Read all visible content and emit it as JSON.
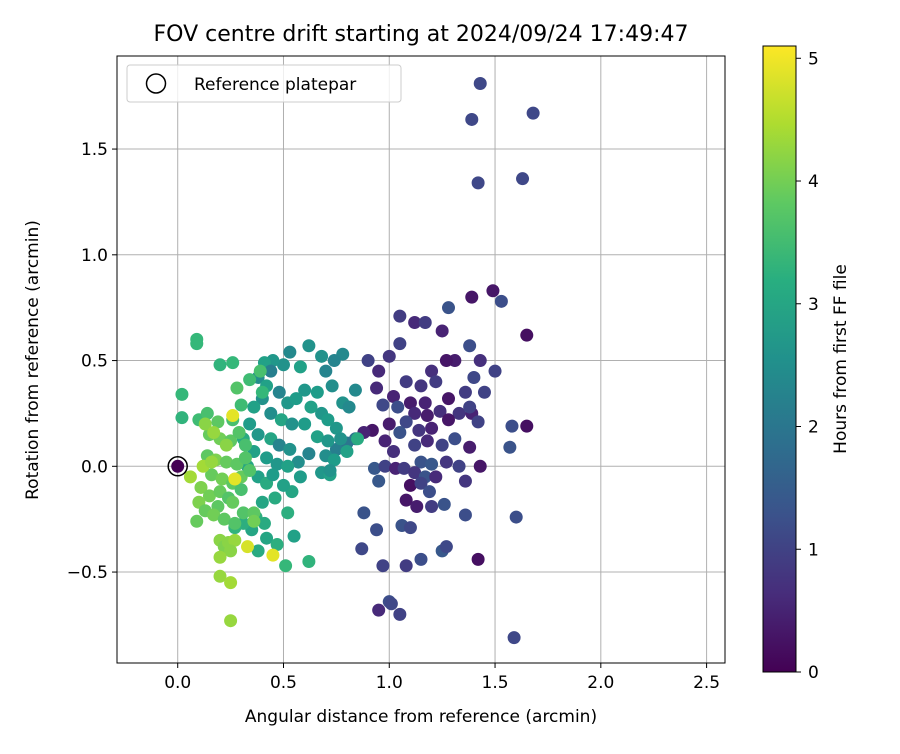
{
  "chart_data": {
    "type": "scatter",
    "title": "FOV centre drift starting at 2024/09/24 17:49:47",
    "xlabel": "Angular distance from reference (arcmin)",
    "ylabel": "Rotation from reference (arcmin)",
    "xlim": [
      -0.287,
      2.587
    ],
    "ylim": [
      -0.93,
      1.94
    ],
    "xticks": [
      0.0,
      0.5,
      1.0,
      1.5,
      2.0,
      2.5
    ],
    "xtick_labels": [
      "0.0",
      "0.5",
      "1.0",
      "1.5",
      "2.0",
      "2.5"
    ],
    "yticks": [
      -0.5,
      0.0,
      0.5,
      1.0,
      1.5
    ],
    "ytick_labels": [
      "−0.5",
      "0.0",
      "0.5",
      "1.0",
      "1.5"
    ],
    "grid": true,
    "legend": {
      "placement": "upper-left",
      "entries": [
        "Reference platepar"
      ]
    },
    "reference_point": {
      "x": 0.0,
      "y": 0.0
    },
    "colorbar": {
      "label": "Hours from first FF file",
      "range": [
        0,
        5.1
      ],
      "ticks": [
        0,
        1,
        2,
        3,
        4,
        5
      ],
      "tick_labels": [
        "0",
        "1",
        "2",
        "3",
        "4",
        "5"
      ],
      "colormap": "viridis"
    },
    "points": [
      [
        1.43,
        1.81,
        1.1
      ],
      [
        1.68,
        1.67,
        1.1
      ],
      [
        1.39,
        1.64,
        1.1
      ],
      [
        1.63,
        1.36,
        1.1
      ],
      [
        1.42,
        1.34,
        1.1
      ],
      [
        1.49,
        0.83,
        0.3
      ],
      [
        1.39,
        0.8,
        0.3
      ],
      [
        1.53,
        0.78,
        1.2
      ],
      [
        1.28,
        0.75,
        1.3
      ],
      [
        1.65,
        0.62,
        0.2
      ],
      [
        1.05,
        0.71,
        0.9
      ],
      [
        1.12,
        0.68,
        0.6
      ],
      [
        1.17,
        0.68,
        0.9
      ],
      [
        1.25,
        0.64,
        0.5
      ],
      [
        1.05,
        0.58,
        1.0
      ],
      [
        1.38,
        0.57,
        1.2
      ],
      [
        1.43,
        0.5,
        0.7
      ],
      [
        1.31,
        0.5,
        0.4
      ],
      [
        1.27,
        0.5,
        0.3
      ],
      [
        1.5,
        0.45,
        1.0
      ],
      [
        1.0,
        0.52,
        0.8
      ],
      [
        0.9,
        0.5,
        1.0
      ],
      [
        0.95,
        0.45,
        0.6
      ],
      [
        1.2,
        0.45,
        0.7
      ],
      [
        1.08,
        0.4,
        0.9
      ],
      [
        1.15,
        0.38,
        0.8
      ],
      [
        1.22,
        0.4,
        0.9
      ],
      [
        1.4,
        0.42,
        1.1
      ],
      [
        1.36,
        0.35,
        0.9
      ],
      [
        1.45,
        0.35,
        1.0
      ],
      [
        0.94,
        0.37,
        0.6
      ],
      [
        1.02,
        0.33,
        0.5
      ],
      [
        1.1,
        0.3,
        0.4
      ],
      [
        1.17,
        0.3,
        0.5
      ],
      [
        1.28,
        0.32,
        0.3
      ],
      [
        1.33,
        0.25,
        0.8
      ],
      [
        1.39,
        0.25,
        0.5
      ],
      [
        1.42,
        0.21,
        1.0
      ],
      [
        1.38,
        0.28,
        1.0
      ],
      [
        0.97,
        0.29,
        1.1
      ],
      [
        1.04,
        0.28,
        1.2
      ],
      [
        1.12,
        0.25,
        0.6
      ],
      [
        1.18,
        0.24,
        0.4
      ],
      [
        1.24,
        0.26,
        0.7
      ],
      [
        1.58,
        0.19,
        1.2
      ],
      [
        1.65,
        0.19,
        0.2
      ],
      [
        1.28,
        0.22,
        0.3
      ],
      [
        1.2,
        0.18,
        0.5
      ],
      [
        1.14,
        0.17,
        0.8
      ],
      [
        1.08,
        0.21,
        1.1
      ],
      [
        1.0,
        0.2,
        0.4
      ],
      [
        0.92,
        0.17,
        0.3
      ],
      [
        0.98,
        0.12,
        0.5
      ],
      [
        1.05,
        0.16,
        1.3
      ],
      [
        1.12,
        0.1,
        1.0
      ],
      [
        1.18,
        0.12,
        0.6
      ],
      [
        1.25,
        0.1,
        1.0
      ],
      [
        1.31,
        0.13,
        1.2
      ],
      [
        1.38,
        0.09,
        0.4
      ],
      [
        1.57,
        0.09,
        1.3
      ],
      [
        0.88,
        0.16,
        0.5
      ],
      [
        0.84,
        0.13,
        1.9
      ],
      [
        0.8,
        0.11,
        2.0
      ],
      [
        0.75,
        0.08,
        2.2
      ],
      [
        1.02,
        0.07,
        0.7
      ],
      [
        1.15,
        0.02,
        1.3
      ],
      [
        1.2,
        0.01,
        1.4
      ],
      [
        1.27,
        0.02,
        0.8
      ],
      [
        1.33,
        0.0,
        1.0
      ],
      [
        1.43,
        0.0,
        0.3
      ],
      [
        0.93,
        -0.01,
        1.4
      ],
      [
        0.98,
        0.0,
        1.0
      ],
      [
        1.03,
        -0.01,
        0.5
      ],
      [
        1.07,
        -0.01,
        0.9
      ],
      [
        1.12,
        -0.03,
        0.8
      ],
      [
        1.17,
        -0.05,
        1.3
      ],
      [
        1.22,
        -0.05,
        0.6
      ],
      [
        0.95,
        -0.07,
        1.4
      ],
      [
        1.1,
        -0.09,
        0.2
      ],
      [
        1.15,
        -0.08,
        1.0
      ],
      [
        1.19,
        -0.12,
        1.2
      ],
      [
        1.36,
        -0.07,
        0.8
      ],
      [
        1.08,
        -0.16,
        0.3
      ],
      [
        1.13,
        -0.19,
        0.4
      ],
      [
        1.2,
        -0.19,
        0.9
      ],
      [
        1.26,
        -0.18,
        1.3
      ],
      [
        1.36,
        -0.23,
        1.2
      ],
      [
        0.88,
        -0.22,
        1.3
      ],
      [
        0.94,
        -0.3,
        1.2
      ],
      [
        1.06,
        -0.28,
        1.3
      ],
      [
        1.1,
        -0.29,
        1.1
      ],
      [
        1.25,
        -0.4,
        1.4
      ],
      [
        1.27,
        -0.38,
        1.1
      ],
      [
        1.42,
        -0.44,
        0.2
      ],
      [
        1.6,
        -0.24,
        1.2
      ],
      [
        0.87,
        -0.39,
        1.1
      ],
      [
        0.97,
        -0.47,
        1.0
      ],
      [
        1.08,
        -0.47,
        0.9
      ],
      [
        1.15,
        -0.44,
        1.2
      ],
      [
        1.0,
        -0.64,
        1.2
      ],
      [
        1.01,
        -0.65,
        1.1
      ],
      [
        1.05,
        -0.7,
        1.0
      ],
      [
        1.59,
        -0.81,
        1.1
      ],
      [
        0.95,
        -0.68,
        0.6
      ],
      [
        0.78,
        0.53,
        2.4
      ],
      [
        0.74,
        0.5,
        2.3
      ],
      [
        0.62,
        0.57,
        2.6
      ],
      [
        0.58,
        0.47,
        2.9
      ],
      [
        0.6,
        0.36,
        2.7
      ],
      [
        0.68,
        0.52,
        2.6
      ],
      [
        0.7,
        0.45,
        2.3
      ],
      [
        0.73,
        0.38,
        2.5
      ],
      [
        0.66,
        0.35,
        2.8
      ],
      [
        0.78,
        0.3,
        2.6
      ],
      [
        0.84,
        0.36,
        2.4
      ],
      [
        0.81,
        0.28,
        2.4
      ],
      [
        0.68,
        0.25,
        2.7
      ],
      [
        0.71,
        0.22,
        2.8
      ],
      [
        0.75,
        0.18,
        2.7
      ],
      [
        0.63,
        0.28,
        2.9
      ],
      [
        0.6,
        0.2,
        2.8
      ],
      [
        0.66,
        0.14,
        2.9
      ],
      [
        0.71,
        0.12,
        2.7
      ],
      [
        0.77,
        0.13,
        2.6
      ],
      [
        0.7,
        0.05,
        2.5
      ],
      [
        0.74,
        0.03,
        2.8
      ],
      [
        0.68,
        -0.03,
        2.7
      ],
      [
        0.72,
        -0.04,
        2.9
      ],
      [
        0.57,
        0.02,
        2.5
      ],
      [
        0.62,
        0.06,
        2.3
      ],
      [
        0.58,
        -0.05,
        2.8
      ],
      [
        0.54,
        -0.12,
        3.0
      ],
      [
        0.5,
        -0.09,
        2.9
      ],
      [
        0.46,
        -0.15,
        3.1
      ],
      [
        0.53,
        0.54,
        2.4
      ],
      [
        0.5,
        0.48,
        2.6
      ],
      [
        0.45,
        0.5,
        2.7
      ],
      [
        0.41,
        0.49,
        2.9
      ],
      [
        0.44,
        0.45,
        2.2
      ],
      [
        0.38,
        0.42,
        2.5
      ],
      [
        0.42,
        0.38,
        2.9
      ],
      [
        0.48,
        0.35,
        2.3
      ],
      [
        0.52,
        0.3,
        2.7
      ],
      [
        0.56,
        0.32,
        2.8
      ],
      [
        0.4,
        0.32,
        2.6
      ],
      [
        0.36,
        0.28,
        2.9
      ],
      [
        0.44,
        0.25,
        2.5
      ],
      [
        0.49,
        0.22,
        3.0
      ],
      [
        0.54,
        0.2,
        2.6
      ],
      [
        0.34,
        0.2,
        2.8
      ],
      [
        0.38,
        0.15,
        2.7
      ],
      [
        0.44,
        0.13,
        3.0
      ],
      [
        0.48,
        0.1,
        2.3
      ],
      [
        0.53,
        0.08,
        2.6
      ],
      [
        0.31,
        0.13,
        3.1
      ],
      [
        0.36,
        0.07,
        2.9
      ],
      [
        0.42,
        0.04,
        2.8
      ],
      [
        0.47,
        0.01,
        2.7
      ],
      [
        0.52,
        0.0,
        2.9
      ],
      [
        0.33,
        0.0,
        3.0
      ],
      [
        0.38,
        -0.05,
        2.9
      ],
      [
        0.42,
        -0.08,
        3.1
      ],
      [
        0.45,
        -0.04,
        2.8
      ],
      [
        0.4,
        -0.17,
        3.0
      ],
      [
        0.37,
        -0.24,
        3.2
      ],
      [
        0.41,
        -0.27,
        3.1
      ],
      [
        0.35,
        -0.3,
        3.0
      ],
      [
        0.31,
        -0.27,
        3.2
      ],
      [
        0.27,
        -0.29,
        3.3
      ],
      [
        0.42,
        -0.34,
        3.0
      ],
      [
        0.38,
        -0.4,
        3.1
      ],
      [
        0.52,
        -0.22,
        3.2
      ],
      [
        0.55,
        -0.33,
        2.9
      ],
      [
        0.47,
        -0.37,
        3.2
      ],
      [
        0.62,
        -0.45,
        3.3
      ],
      [
        0.51,
        -0.47,
        3.4
      ],
      [
        0.85,
        0.13,
        3.1
      ],
      [
        0.8,
        0.07,
        2.9
      ],
      [
        0.72,
        -0.02,
        2.6
      ],
      [
        0.2,
        0.48,
        3.3
      ],
      [
        0.26,
        0.49,
        3.4
      ],
      [
        0.09,
        0.6,
        3.4
      ],
      [
        0.09,
        0.58,
        3.4
      ],
      [
        0.02,
        0.34,
        3.4
      ],
      [
        0.02,
        0.23,
        3.3
      ],
      [
        0.1,
        0.22,
        3.5
      ],
      [
        0.14,
        0.25,
        3.6
      ],
      [
        0.19,
        0.21,
        3.8
      ],
      [
        0.26,
        0.22,
        3.6
      ],
      [
        0.3,
        0.29,
        3.5
      ],
      [
        0.28,
        0.37,
        3.7
      ],
      [
        0.34,
        0.41,
        3.5
      ],
      [
        0.4,
        0.35,
        3.4
      ],
      [
        0.39,
        0.45,
        3.6
      ],
      [
        0.15,
        0.15,
        3.9
      ],
      [
        0.2,
        0.13,
        4.0
      ],
      [
        0.25,
        0.12,
        3.8
      ],
      [
        0.29,
        0.16,
        3.7
      ],
      [
        0.32,
        0.1,
        3.6
      ],
      [
        0.14,
        0.05,
        3.8
      ],
      [
        0.18,
        0.03,
        4.1
      ],
      [
        0.23,
        0.02,
        3.9
      ],
      [
        0.28,
        0.01,
        3.8
      ],
      [
        0.32,
        0.04,
        3.7
      ],
      [
        0.16,
        -0.04,
        3.9
      ],
      [
        0.21,
        -0.06,
        4.0
      ],
      [
        0.26,
        -0.08,
        3.8
      ],
      [
        0.3,
        -0.05,
        3.9
      ],
      [
        0.34,
        -0.02,
        3.7
      ],
      [
        0.11,
        -0.1,
        4.1
      ],
      [
        0.15,
        -0.14,
        4.0
      ],
      [
        0.2,
        -0.12,
        3.9
      ],
      [
        0.24,
        -0.15,
        3.7
      ],
      [
        0.3,
        -0.11,
        3.6
      ],
      [
        0.1,
        -0.17,
        4.1
      ],
      [
        0.19,
        -0.19,
        3.8
      ],
      [
        0.26,
        -0.17,
        3.9
      ],
      [
        0.31,
        -0.22,
        3.7
      ],
      [
        0.36,
        -0.22,
        3.8
      ],
      [
        0.13,
        -0.21,
        3.9
      ],
      [
        0.17,
        -0.23,
        4.0
      ],
      [
        0.22,
        -0.25,
        3.8
      ],
      [
        0.27,
        -0.27,
        3.7
      ],
      [
        0.09,
        -0.26,
        3.9
      ],
      [
        0.2,
        -0.35,
        4.2
      ],
      [
        0.22,
        -0.38,
        4.1
      ],
      [
        0.24,
        -0.36,
        4.2
      ],
      [
        0.27,
        -0.35,
        4.3
      ],
      [
        0.25,
        -0.4,
        4.2
      ],
      [
        0.2,
        -0.43,
        4.3
      ],
      [
        0.2,
        -0.52,
        4.3
      ],
      [
        0.25,
        -0.55,
        4.4
      ],
      [
        0.25,
        -0.73,
        4.3
      ],
      [
        0.06,
        -0.05,
        4.4
      ],
      [
        0.13,
        0.2,
        4.2
      ],
      [
        0.17,
        0.16,
        4.3
      ],
      [
        0.23,
        0.1,
        4.2
      ],
      [
        0.12,
        0.0,
        4.4
      ],
      [
        0.16,
        0.02,
        4.3
      ],
      [
        0.26,
        0.24,
        4.9
      ],
      [
        0.27,
        -0.06,
        4.9
      ],
      [
        0.33,
        -0.38,
        4.8
      ],
      [
        0.45,
        -0.42,
        4.9
      ],
      [
        0.36,
        -0.26,
        4.0
      ]
    ]
  }
}
